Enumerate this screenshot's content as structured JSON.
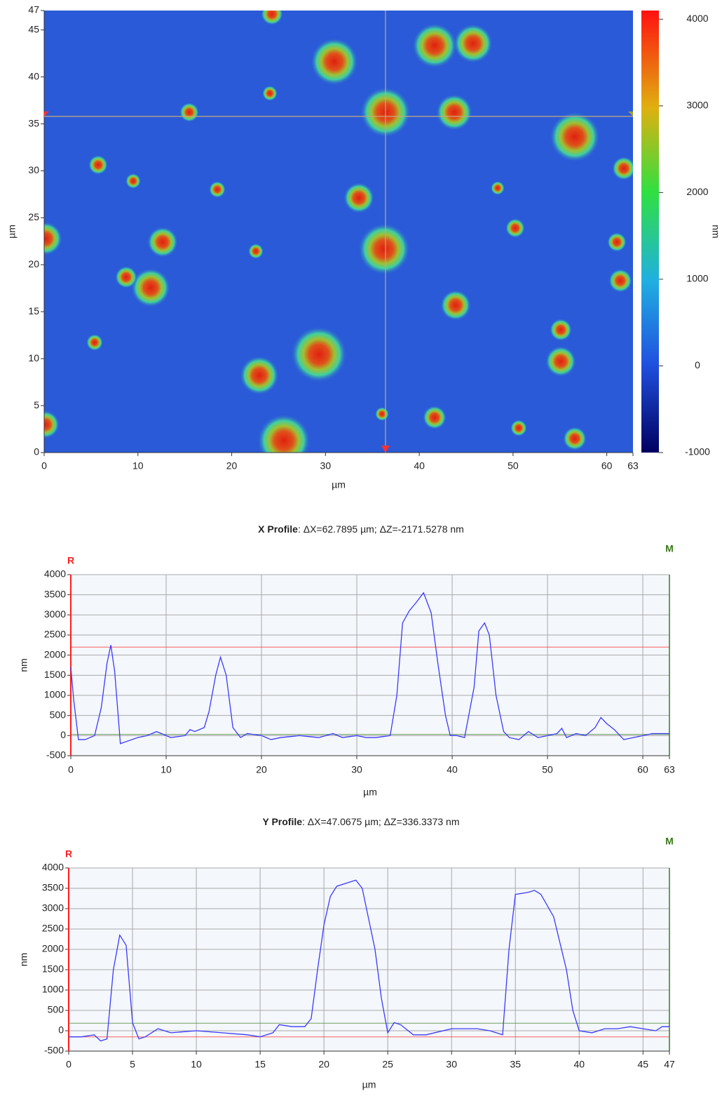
{
  "chart_data": [
    {
      "type": "image",
      "x_label": "µm",
      "y_label": "µm",
      "z_label": "nm",
      "xlim": [
        0,
        62.79
      ],
      "ylim": [
        0,
        47.07
      ],
      "xticks": [
        0,
        10,
        20,
        30,
        40,
        50,
        60,
        {
          "value": 62.79,
          "label": "63"
        }
      ],
      "yticks": [
        0,
        5,
        10,
        15,
        20,
        25,
        30,
        35,
        40,
        45,
        {
          "value": 47.07,
          "label": "47"
        }
      ],
      "zlim": [
        -1000,
        4100
      ],
      "zticks": [
        -1000,
        0,
        1000,
        2000,
        3000,
        4000
      ],
      "cursor": {
        "x": 36.4,
        "y": 35.8
      }
    },
    {
      "type": "line",
      "title": "X Profile",
      "title_detail": ": ΔX=62.7895 µm; ΔZ=-2171.5278 nm",
      "x_label": "µm",
      "y_label": "nm",
      "grid": true,
      "xlim": [
        0,
        62.79
      ],
      "ylim": [
        -500,
        4000
      ],
      "xticks": [
        0,
        10,
        20,
        30,
        40,
        50,
        60,
        {
          "value": 62.79,
          "label": "63"
        }
      ],
      "yticks": [
        -500,
        0,
        500,
        1000,
        1500,
        2000,
        2500,
        3000,
        3500,
        4000
      ],
      "ref_lines": [
        {
          "name": "R",
          "value": 2200,
          "color": "#ff2020"
        },
        {
          "name": "M",
          "value": 30,
          "color": "#3a7a1a"
        }
      ],
      "x": [
        0,
        0.3,
        0.8,
        1.5,
        2.5,
        3.2,
        3.8,
        4.2,
        4.6,
        5.2,
        5.8,
        7,
        8,
        9,
        9.5,
        10.5,
        12,
        12.5,
        13,
        14,
        14.5,
        15.2,
        15.7,
        16.3,
        17,
        17.8,
        18.5,
        20,
        21,
        22,
        24,
        26,
        27.5,
        28.5,
        30,
        31,
        32,
        33.5,
        34.2,
        34.8,
        35.5,
        36.2,
        37,
        37.8,
        38.5,
        39.3,
        39.8,
        40.5,
        41.3,
        42.3,
        42.8,
        43.4,
        43.9,
        44.6,
        45.4,
        46,
        47,
        48,
        49,
        50,
        51,
        51.5,
        52,
        53,
        54,
        55,
        55.6,
        56.2,
        57,
        58,
        59,
        60,
        61,
        62.79
      ],
      "series": [
        {
          "color": "#3a3aff",
          "values": [
            1700,
            900,
            -100,
            -100,
            0,
            700,
            1800,
            2250,
            1600,
            -200,
            -150,
            -50,
            0,
            100,
            50,
            -50,
            0,
            150,
            100,
            200,
            600,
            1500,
            1950,
            1500,
            200,
            -50,
            50,
            0,
            -100,
            -50,
            0,
            -50,
            50,
            -50,
            0,
            -50,
            -50,
            0,
            1000,
            2800,
            3100,
            3300,
            3550,
            3050,
            1800,
            500,
            0,
            0,
            -50,
            1200,
            2600,
            2800,
            2500,
            1000,
            100,
            -50,
            -100,
            100,
            -50,
            0,
            50,
            180,
            -50,
            50,
            0,
            200,
            450,
            300,
            150,
            -100,
            -50,
            0,
            50,
            50
          ]
        }
      ]
    },
    {
      "type": "line",
      "title": "Y Profile",
      "title_detail": ": ΔX=47.0675 µm; ΔZ=336.3373 nm",
      "x_label": "µm",
      "y_label": "nm",
      "grid": true,
      "xlim": [
        0,
        47.07
      ],
      "ylim": [
        -500,
        4000
      ],
      "xticks": [
        0,
        5,
        10,
        15,
        20,
        25,
        30,
        35,
        40,
        45,
        {
          "value": 47.07,
          "label": "47"
        }
      ],
      "yticks": [
        -500,
        0,
        500,
        1000,
        1500,
        2000,
        2500,
        3000,
        3500,
        4000
      ],
      "ref_lines": [
        {
          "name": "R",
          "value": -150,
          "color": "#ff2020"
        },
        {
          "name": "M",
          "value": 186,
          "color": "#3a7a1a"
        }
      ],
      "x": [
        0,
        1,
        2,
        2.5,
        3,
        3.5,
        4,
        4.5,
        5,
        5.5,
        6,
        7,
        8,
        10,
        12,
        14,
        15,
        16,
        16.5,
        17.5,
        18.5,
        19,
        19.5,
        20,
        20.5,
        21,
        22,
        22.5,
        23,
        24,
        24.5,
        25,
        25.5,
        26,
        27,
        28,
        30,
        32,
        33,
        33.5,
        34,
        34.5,
        35,
        36,
        36.5,
        37,
        38,
        39,
        39.5,
        40,
        41,
        42,
        43,
        44,
        45,
        46,
        46.5,
        47.07
      ],
      "series": [
        {
          "color": "#3a3aff",
          "values": [
            -150,
            -150,
            -100,
            -250,
            -200,
            1500,
            2350,
            2100,
            200,
            -200,
            -150,
            50,
            -50,
            0,
            -50,
            -100,
            -150,
            -50,
            150,
            100,
            100,
            300,
            1500,
            2600,
            3300,
            3550,
            3650,
            3700,
            3500,
            2000,
            800,
            -50,
            200,
            150,
            -100,
            -100,
            50,
            50,
            0,
            -50,
            -100,
            2000,
            3350,
            3400,
            3450,
            3350,
            2800,
            1500,
            500,
            0,
            -50,
            50,
            50,
            100,
            50,
            0,
            100,
            100
          ]
        }
      ]
    }
  ]
}
